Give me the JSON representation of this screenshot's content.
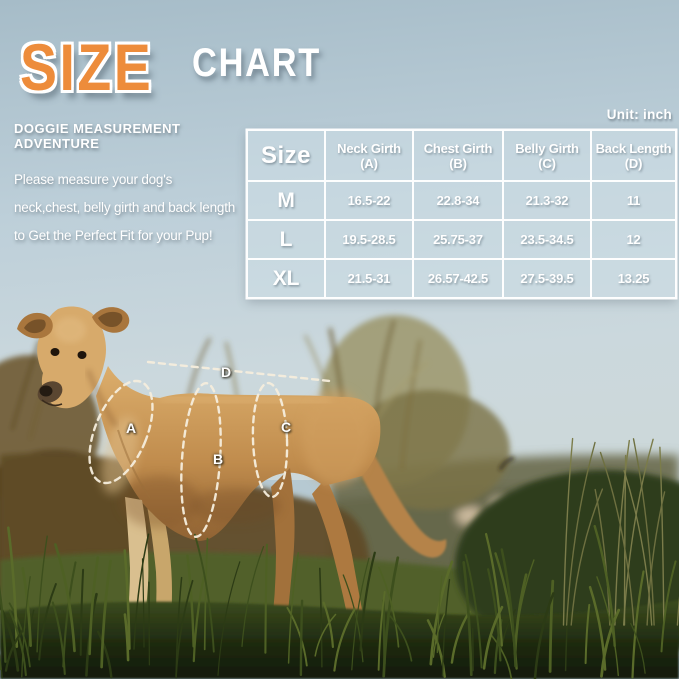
{
  "title": {
    "accent_word": "SIZE",
    "rest_word": "CHART"
  },
  "unit_note": "Unit: inch",
  "intro": {
    "heading": "DOGGIE MEASUREMENT ADVENTURE",
    "line1": "Please measure your dog's",
    "line2": "neck,chest, belly girth and back length",
    "line3": "to Get the Perfect Fit for your Pup!"
  },
  "size_table": {
    "headers": {
      "size": "Size",
      "neck": "Neck Girth",
      "neck_key": "(A)",
      "chest": "Chest Girth",
      "chest_key": "(B)",
      "belly": "Belly Girth",
      "belly_key": "(C)",
      "back": "Back Length",
      "back_key": "(D)"
    },
    "rows": [
      {
        "size": "M",
        "neck": "16.5-22",
        "chest": "22.8-34",
        "belly": "21.3-32",
        "back": "11"
      },
      {
        "size": "L",
        "neck": "19.5-28.5",
        "chest": "25.75-37",
        "belly": "23.5-34.5",
        "back": "12"
      },
      {
        "size": "XL",
        "neck": "21.5-31",
        "chest": "26.57-42.5",
        "belly": "27.5-39.5",
        "back": "13.25"
      }
    ]
  },
  "diagram": {
    "label_a": "A",
    "label_b": "B",
    "label_c": "C",
    "label_d": "D"
  },
  "colors": {
    "accent_orange": "#ED8C3B",
    "text_white": "#FFFFFF",
    "dash_cream": "#F6EEDD"
  }
}
